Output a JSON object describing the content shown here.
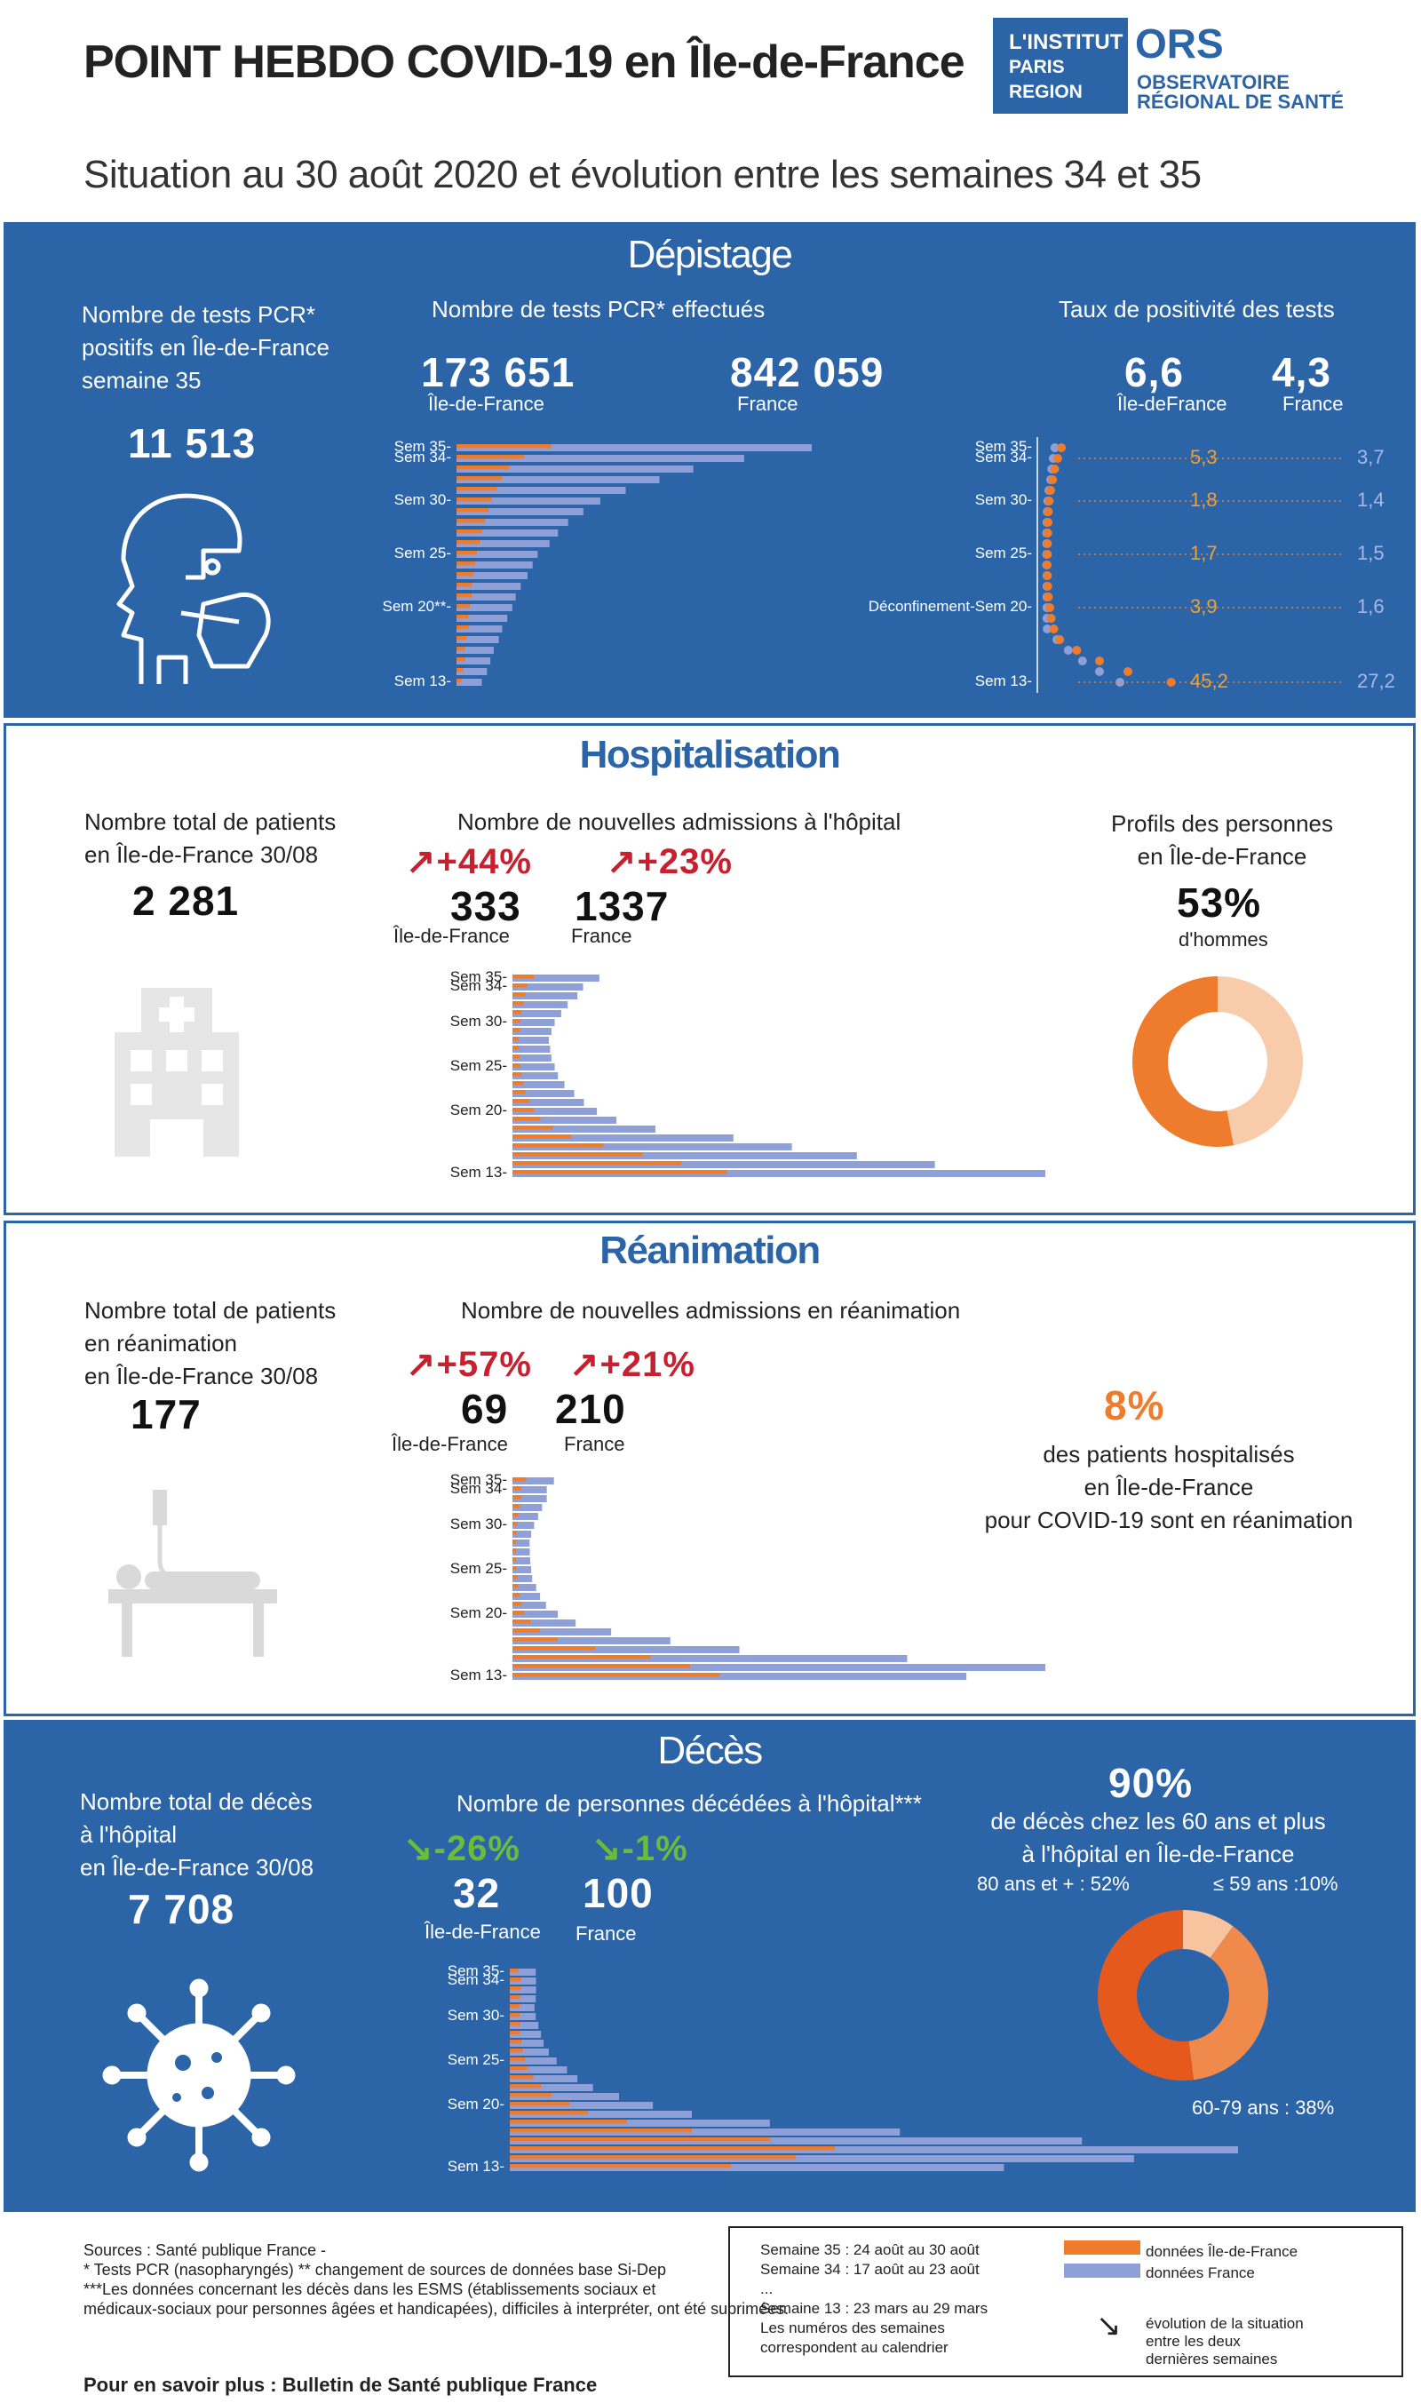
{
  "header": {
    "title": "POINT HEBDO COVID-19 en Île-de-France",
    "subtitle": "Situation au 30 août 2020 et évolution entre les semaines 34 et 35",
    "logo_left": [
      "L'INSTITUT",
      "PARIS",
      "REGION"
    ],
    "logo_right_big": "ORS",
    "logo_right_sub": [
      "OBSERVATOIRE",
      "RÉGIONAL DE SANTÉ"
    ]
  },
  "colors": {
    "blue_panel": "#2c64a8",
    "idf_orange": "#ef7b2d",
    "france_blue": "#8f9fd8",
    "increase_red": "#c8202f",
    "decrease_green": "#6cbc3c"
  },
  "depistage": {
    "title": "Dépistage",
    "left_label_lines": [
      "Nombre de tests PCR*",
      "positifs en Île-de-France",
      "semaine 35"
    ],
    "left_value": "11 513",
    "icon": "test-swab-icon",
    "middle_label": "Nombre de tests PCR* effectués",
    "idf_value": "173 651",
    "idf_label": "Île-de-France",
    "fr_value": "842 059",
    "fr_label": "France",
    "right_label": "Taux de positivité des tests",
    "rate_idf_value": "6,6",
    "rate_idf_label": "Île-deFrance",
    "rate_fr_value": "4,3",
    "rate_fr_label": "France",
    "bar_ticks": [
      "Sem 35-",
      "Sem 34-",
      "Sem 30-",
      "Sem 25-",
      "Sem 20**-",
      "Sem 13-"
    ],
    "scatter_ticks": [
      "Sem 35-",
      "Sem 34-",
      "Sem 30-",
      "Sem 25-",
      "Déconfinement-Sem 20-",
      "Sem 13-"
    ],
    "rate_annotations": [
      {
        "idf": "5,3",
        "fr": "3,7"
      },
      {
        "idf": "1,8",
        "fr": "1,4"
      },
      {
        "idf": "1,7",
        "fr": "1,5"
      },
      {
        "idf": "3,9",
        "fr": "1,6"
      },
      {
        "idf": "45,2",
        "fr": "27,2"
      }
    ]
  },
  "hospitalisation": {
    "title": "Hospitalisation",
    "left_label_lines": [
      "Nombre total de patients",
      "en Île-de-France 30/08"
    ],
    "left_value": "2 281",
    "icon": "hospital-building-icon",
    "middle_label": "Nombre de nouvelles admissions à l'hôpital",
    "idf_change": "+44%",
    "fr_change": "+23%",
    "idf_value": "333",
    "fr_value": "1337",
    "idf_label": "Île-de-France",
    "fr_label": "France",
    "bar_ticks": [
      "Sem 35-",
      "Sem 34-",
      "Sem 30-",
      "Sem 25-",
      "Sem 20-",
      "Sem 13-"
    ],
    "right_label_lines": [
      "Profils des personnes",
      "en Île-de-France"
    ],
    "right_value": "53%",
    "right_sub": "d'hommes"
  },
  "reanimation": {
    "title": "Réanimation",
    "left_label_lines": [
      "Nombre total de patients",
      "en réanimation",
      "en Île-de-France 30/08"
    ],
    "left_value": "177",
    "icon": "patient-bed-icon",
    "middle_label": "Nombre de nouvelles admissions en réanimation",
    "idf_change": "+57%",
    "fr_change": "+21%",
    "idf_value": "69",
    "fr_value": "210",
    "idf_label": "Île-de-France",
    "fr_label": "France",
    "bar_ticks": [
      "Sem 35-",
      "Sem 34-",
      "Sem 30-",
      "Sem 25-",
      "Sem 20-",
      "Sem 13-"
    ],
    "right_value": "8%",
    "right_label_lines": [
      "des patients hospitalisés",
      "en Île-de-France",
      "pour COVID-19 sont en réanimation"
    ]
  },
  "deces": {
    "title": "Décès",
    "left_label_lines": [
      "Nombre total de décès",
      "à l'hôpital",
      "en Île-de-France 30/08"
    ],
    "left_value": "7 708",
    "icon": "virus-icon",
    "middle_label": "Nombre de personnes décédées à l'hôpital***",
    "idf_change": "-26%",
    "fr_change": "-1%",
    "idf_value": "32",
    "fr_value": "100",
    "idf_label": "Île-de-France",
    "fr_label": "France",
    "bar_ticks": [
      "Sem 35-",
      "Sem 34-",
      "Sem 30-",
      "Sem 25-",
      "Sem 20-",
      "Sem 13-"
    ],
    "right_value": "90%",
    "right_label_lines": [
      "de décès chez les 60 ans et plus",
      "à l'hôpital en Île-de-France"
    ],
    "donut_labels": {
      "a": "80 ans et + : 52%",
      "b": "≤ 59 ans :10%",
      "c": "60-79 ans : 38%"
    }
  },
  "chart_data": [
    {
      "type": "bar",
      "title": "Nombre de tests PCR* effectués",
      "note": "weeks 13 to 35, horizontal bars; values relative (no axis printed)",
      "series": [
        {
          "name": "Île-de-France",
          "values": [
            3,
            4,
            5,
            5,
            6,
            7,
            7,
            8,
            9,
            9,
            10,
            11,
            12,
            14,
            15,
            17,
            19,
            21,
            24,
            27,
            31,
            40,
            56
          ]
        },
        {
          "name": "France",
          "values": [
            15,
            18,
            20,
            22,
            25,
            27,
            30,
            33,
            35,
            38,
            42,
            45,
            48,
            55,
            60,
            66,
            75,
            85,
            100,
            120,
            140,
            170,
            210
          ]
        }
      ]
    },
    {
      "type": "scatter",
      "title": "Taux de positivité des tests",
      "series": [
        {
          "name": "Île-de-France",
          "values": [
            45.2,
            30,
            20,
            12,
            6,
            3.9,
            3,
            2.5,
            2,
            1.8,
            1.7,
            1.6,
            1.7,
            1.7,
            1.8,
            1.9,
            2,
            2.3,
            2.8,
            3.5,
            4.2,
            5.3,
            6.6
          ]
        },
        {
          "name": "France",
          "values": [
            27.2,
            20,
            14,
            9,
            5,
            1.6,
            1.5,
            1.5,
            1.5,
            1.5,
            1.5,
            1.4,
            1.4,
            1.4,
            1.4,
            1.5,
            1.6,
            1.8,
            2.2,
            2.8,
            3.2,
            3.7,
            4.3
          ]
        }
      ]
    },
    {
      "type": "bar",
      "title": "Nombre de nouvelles admissions à l'hôpital",
      "series": [
        {
          "name": "Île-de-France",
          "values": [
            3300,
            2600,
            2000,
            1400,
            900,
            620,
            430,
            330,
            260,
            200,
            170,
            140,
            120,
            110,
            100,
            95,
            110,
            120,
            140,
            170,
            200,
            231,
            333
          ]
        },
        {
          "name": "France",
          "values": [
            8200,
            6500,
            5300,
            4300,
            3400,
            2200,
            1600,
            1300,
            1100,
            950,
            800,
            700,
            650,
            600,
            580,
            560,
            600,
            650,
            750,
            850,
            1000,
            1087,
            1337
          ]
        }
      ]
    },
    {
      "type": "bar",
      "title": "Nombre de nouvelles admissions en réanimation",
      "series": [
        {
          "name": "Île-de-France",
          "values": [
            1050,
            900,
            700,
            420,
            230,
            140,
            90,
            60,
            45,
            35,
            28,
            24,
            22,
            20,
            20,
            19,
            22,
            25,
            30,
            36,
            44,
            44,
            69
          ]
        },
        {
          "name": "France",
          "values": [
            2300,
            2700,
            2000,
            1150,
            800,
            500,
            320,
            230,
            170,
            140,
            120,
            100,
            95,
            90,
            88,
            87,
            95,
            110,
            130,
            150,
            174,
            174,
            210
          ]
        }
      ]
    },
    {
      "type": "bar",
      "title": "Nombre de personnes décédées à l'hôpital***",
      "series": [
        {
          "name": "Île-de-France",
          "values": [
            850,
            1100,
            1250,
            1000,
            700,
            450,
            300,
            230,
            160,
            120,
            90,
            70,
            60,
            50,
            45,
            40,
            40,
            38,
            38,
            40,
            43,
            43,
            32
          ]
        },
        {
          "name": "France",
          "values": [
            1900,
            2400,
            2800,
            2200,
            1500,
            1000,
            700,
            550,
            420,
            320,
            260,
            220,
            180,
            150,
            130,
            120,
            110,
            100,
            95,
            100,
            101,
            101,
            100
          ]
        }
      ]
    },
    {
      "type": "pie",
      "title": "Profils des personnes en Île-de-France",
      "labels": [
        "hommes",
        "femmes"
      ],
      "values": [
        53,
        47
      ]
    },
    {
      "type": "pie",
      "title": "de décès chez les 60 ans et plus à l'hôpital en Île-de-France",
      "labels": [
        "80 ans et +",
        "60-79 ans",
        "≤ 59 ans"
      ],
      "values": [
        52,
        38,
        10
      ]
    }
  ],
  "footer": {
    "sources": [
      "Sources : Santé publique France -",
      "* Tests PCR (nasopharyngés) ** changement de sources de données base Si-Dep",
      "***Les données concernant les décès dans les ESMS  (établissements sociaux et",
      "médicaux-sociaux pour personnes âgées et handicapées), difficiles à interpréter, ont été suprimées."
    ],
    "more": "Pour en savoir plus : Bulletin de Santé publique France",
    "weeks": [
      "Semaine 35 : 24 août au 30 août",
      "Semaine 34 : 17 août au 23 août",
      "...",
      "Semaine 13 : 23 mars au 29 mars",
      "Les numéros des semaines",
      "correspondent au calendrier"
    ],
    "legend_idf": "données Île-de-France",
    "legend_fr": "données France",
    "legend_arrow": [
      "évolution de la situation",
      "entre les deux",
      "dernières semaines"
    ]
  }
}
